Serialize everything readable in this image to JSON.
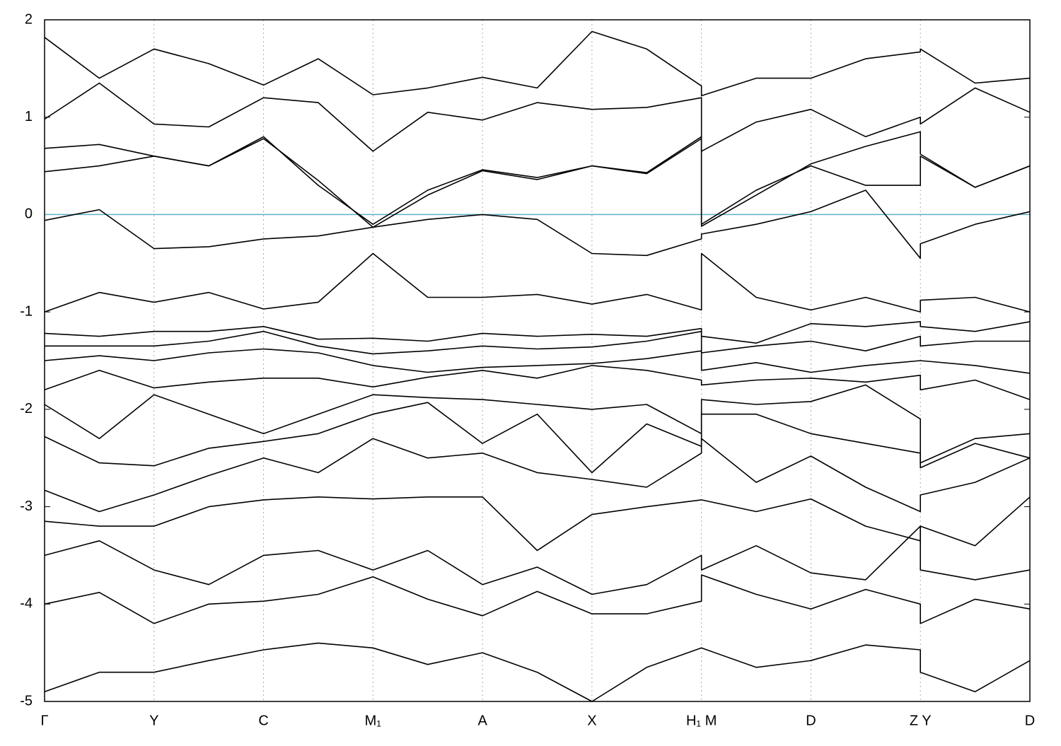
{
  "chart_data": {
    "type": "line",
    "x": [
      0,
      0.5,
      1,
      1.5,
      2,
      2.5,
      3,
      3.5,
      4,
      4.5,
      5,
      5.5,
      6,
      6,
      6.5,
      7,
      7.5,
      8,
      8,
      8.5,
      9
    ],
    "xlim": [
      0,
      9
    ],
    "xticks": [
      {
        "value": 0,
        "label": "Γ"
      },
      {
        "value": 1,
        "label": "Y"
      },
      {
        "value": 2,
        "label": "C"
      },
      {
        "value": 3,
        "label": "M₁"
      },
      {
        "value": 4,
        "label": "A"
      },
      {
        "value": 5,
        "label": "X"
      },
      {
        "value": 6,
        "label": "H₁ M"
      },
      {
        "value": 7,
        "label": "D"
      },
      {
        "value": 8,
        "label": "Z Y"
      },
      {
        "value": 9,
        "label": "D"
      }
    ],
    "ylim": [
      -5,
      2
    ],
    "yticks": [
      -5,
      -4,
      -3,
      -2,
      -1,
      0,
      1,
      2
    ],
    "grid": true,
    "hline": {
      "value": 0,
      "color": "#5fb0c8"
    },
    "series": [
      {
        "color": "#000000",
        "values": [
          1.82,
          1.4,
          1.7,
          1.55,
          1.33,
          1.6,
          1.23,
          1.3,
          1.41,
          1.3,
          1.88,
          1.7,
          1.32,
          1.22,
          1.4,
          1.4,
          1.6,
          1.67,
          1.7,
          1.35,
          1.4
        ]
      },
      {
        "color": "#000000",
        "values": [
          0.98,
          1.35,
          0.93,
          0.9,
          1.2,
          1.15,
          0.65,
          1.05,
          0.97,
          1.15,
          1.08,
          1.1,
          1.2,
          0.65,
          0.95,
          1.08,
          0.8,
          1.0,
          0.93,
          1.3,
          1.05
        ]
      },
      {
        "color": "#000000",
        "values": [
          0.68,
          0.72,
          0.6,
          0.5,
          0.8,
          0.3,
          -0.1,
          0.25,
          0.46,
          0.38,
          0.5,
          0.43,
          0.8,
          -0.12,
          0.2,
          0.52,
          0.7,
          0.85,
          0.62,
          0.28,
          0.5
        ]
      },
      {
        "color": "#000000",
        "values": [
          0.44,
          0.5,
          0.6,
          0.5,
          0.78,
          0.35,
          -0.13,
          0.2,
          0.45,
          0.36,
          0.5,
          0.42,
          0.78,
          -0.1,
          0.25,
          0.5,
          0.3,
          0.3,
          0.6,
          0.28,
          0.5
        ]
      },
      {
        "color": "#000000",
        "values": [
          -0.06,
          0.05,
          -0.35,
          -0.33,
          -0.25,
          -0.22,
          -0.13,
          -0.05,
          0,
          -0.05,
          -0.4,
          -0.42,
          -0.25,
          -0.2,
          -0.1,
          0.03,
          0.25,
          -0.45,
          -0.3,
          -0.1,
          0.03
        ]
      },
      {
        "color": "#000000",
        "values": [
          -1.0,
          -0.8,
          -0.9,
          -0.8,
          -0.97,
          -0.9,
          -0.4,
          -0.85,
          -0.85,
          -0.82,
          -0.92,
          -0.82,
          -0.98,
          -0.4,
          -0.85,
          -0.98,
          -0.85,
          -1.0,
          -0.88,
          -0.85,
          -1.0
        ]
      },
      {
        "color": "#000000",
        "values": [
          -1.22,
          -1.25,
          -1.2,
          -1.2,
          -1.15,
          -1.28,
          -1.27,
          -1.3,
          -1.22,
          -1.25,
          -1.23,
          -1.25,
          -1.17,
          -1.25,
          -1.32,
          -1.12,
          -1.15,
          -1.1,
          -1.15,
          -1.2,
          -1.1
        ]
      },
      {
        "color": "#000000",
        "values": [
          -1.35,
          -1.35,
          -1.35,
          -1.3,
          -1.2,
          -1.35,
          -1.43,
          -1.4,
          -1.35,
          -1.38,
          -1.36,
          -1.3,
          -1.2,
          -1.42,
          -1.35,
          -1.3,
          -1.4,
          -1.25,
          -1.35,
          -1.3,
          -1.3
        ]
      },
      {
        "color": "#000000",
        "values": [
          -1.5,
          -1.45,
          -1.5,
          -1.42,
          -1.38,
          -1.42,
          -1.55,
          -1.62,
          -1.57,
          -1.55,
          -1.53,
          -1.48,
          -1.4,
          -1.6,
          -1.52,
          -1.62,
          -1.55,
          -1.5,
          -1.5,
          -1.55,
          -1.63
        ]
      },
      {
        "color": "#000000",
        "values": [
          -1.8,
          -1.6,
          -1.78,
          -1.72,
          -1.68,
          -1.68,
          -1.77,
          -1.67,
          -1.6,
          -1.68,
          -1.55,
          -1.6,
          -1.7,
          -1.75,
          -1.7,
          -1.68,
          -1.72,
          -1.65,
          -1.8,
          -1.7,
          -1.9
        ]
      },
      {
        "color": "#000000",
        "values": [
          -1.95,
          -2.3,
          -1.85,
          -2.05,
          -2.25,
          -2.05,
          -1.85,
          -1.88,
          -1.9,
          -1.95,
          -2.0,
          -1.95,
          -2.25,
          -1.9,
          -1.95,
          -1.92,
          -1.75,
          -2.1,
          -2.55,
          -2.3,
          -2.25
        ]
      },
      {
        "color": "#000000",
        "values": [
          -2.28,
          -2.55,
          -2.58,
          -2.4,
          -2.33,
          -2.25,
          -2.05,
          -1.93,
          -2.35,
          -2.05,
          -2.65,
          -2.15,
          -2.38,
          -2.05,
          -2.05,
          -2.25,
          -2.35,
          -2.45,
          -2.6,
          -2.35,
          -2.5
        ]
      },
      {
        "color": "#000000",
        "values": [
          -2.83,
          -3.05,
          -2.88,
          -2.68,
          -2.5,
          -2.65,
          -2.3,
          -2.5,
          -2.45,
          -2.65,
          -2.72,
          -2.8,
          -2.45,
          -2.3,
          -2.75,
          -2.48,
          -2.8,
          -3.05,
          -2.88,
          -2.75,
          -2.5
        ]
      },
      {
        "color": "#000000",
        "values": [
          -3.15,
          -3.2,
          -3.2,
          -3.0,
          -2.93,
          -2.9,
          -2.92,
          -2.9,
          -2.9,
          -3.45,
          -3.08,
          -3.0,
          -2.93,
          -2.93,
          -3.05,
          -2.92,
          -3.2,
          -3.35,
          -3.2,
          -3.4,
          -2.9
        ]
      },
      {
        "color": "#000000",
        "values": [
          -3.5,
          -3.35,
          -3.65,
          -3.8,
          -3.5,
          -3.45,
          -3.65,
          -3.45,
          -3.8,
          -3.62,
          -3.9,
          -3.8,
          -3.5,
          -3.65,
          -3.4,
          -3.68,
          -3.75,
          -3.2,
          -3.65,
          -3.75,
          -3.65
        ]
      },
      {
        "color": "#000000",
        "values": [
          -4.0,
          -3.88,
          -4.2,
          -4.0,
          -3.97,
          -3.9,
          -3.72,
          -3.95,
          -4.12,
          -3.87,
          -4.1,
          -4.1,
          -3.97,
          -3.7,
          -3.9,
          -4.05,
          -3.85,
          -4.0,
          -4.2,
          -3.95,
          -4.05
        ]
      },
      {
        "color": "#000000",
        "values": [
          -4.9,
          -4.7,
          -4.7,
          -4.58,
          -4.47,
          -4.4,
          -4.45,
          -4.62,
          -4.5,
          -4.7,
          -5.0,
          -4.65,
          -4.45,
          -4.45,
          -4.65,
          -4.58,
          -4.42,
          -4.47,
          -4.7,
          -4.9,
          -4.58
        ]
      }
    ]
  }
}
